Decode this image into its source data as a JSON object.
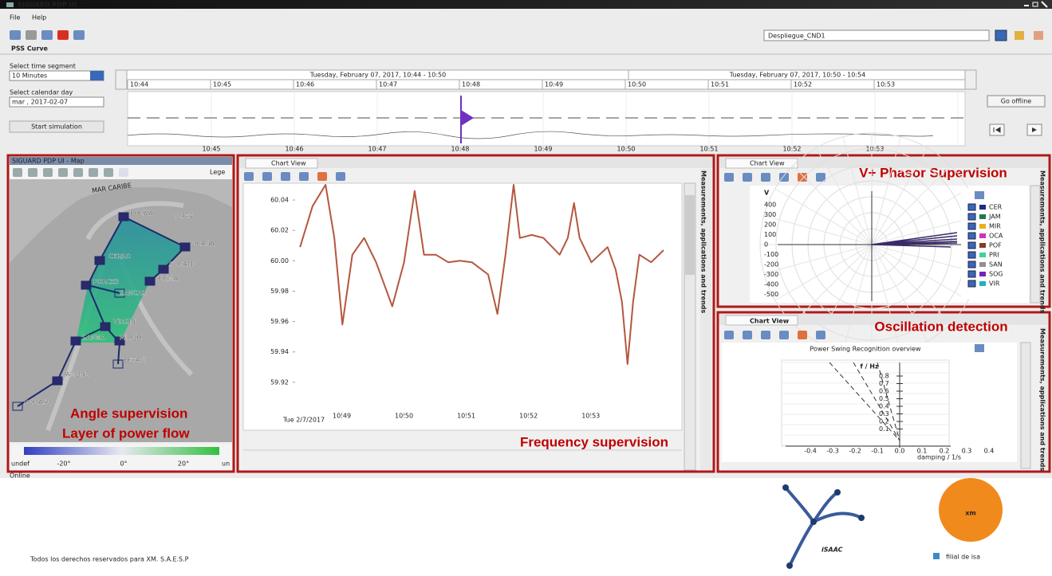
{
  "window": {
    "title": "SIGUARD PDP UI",
    "menu": [
      "File",
      "Help"
    ],
    "workspace": "Despliegue_CND1",
    "tab": "PSS Curve"
  },
  "controls": {
    "time_segment_label": "Select time segment",
    "time_segment": "10 Minutes",
    "calendar_label": "Select calendar day",
    "calendar_day": "mar , 2017-02-07",
    "start_button": "Start simulation",
    "offline_button": "Go offline"
  },
  "timeline": {
    "ranges": [
      "Tuesday, February 07, 2017, 10:44 - 10:50",
      "Tuesday, February 07, 2017, 10:50 - 10:54"
    ],
    "header_ticks": [
      "10:44",
      "10:45",
      "10:46",
      "10:47",
      "10:48",
      "10:49",
      "10:50",
      "10:51",
      "10:52",
      "10:53"
    ],
    "axis_ticks": [
      "10:45",
      "10:46",
      "10:47",
      "10:48",
      "10:49",
      "10:50",
      "10:51",
      "10:52",
      "10:53"
    ]
  },
  "map_panel": {
    "title": "SIGUARD PDP UI - Map",
    "legend_button": "Lege",
    "sea_label": "MAR CARIBE",
    "nodes": [
      "BOLIVA",
      "COPEY",
      "OCANA",
      "CERRO",
      "SOGAMO",
      "PRIMA",
      "PORCE3",
      "SANCAR",
      "VIRGIN",
      "SANMA",
      "MIROLI",
      "BETANI",
      "JAMOND",
      "POMASQ"
    ],
    "annotation": [
      "Angle supervision",
      "Layer of power flow"
    ],
    "scale_labels": [
      "undef",
      "-20°",
      "0°",
      "20°",
      "un"
    ]
  },
  "frequency_panel": {
    "tab": "Chart View",
    "side_label": "Measurements, applications and trends",
    "annotation": "Frequency supervision",
    "chart": {
      "type": "line",
      "color": "#b4573e",
      "x_date_label": "Tue 2/7/2017",
      "x": [
        48.33,
        48.53,
        48.74,
        48.88,
        49.01,
        49.17,
        49.36,
        49.55,
        49.81,
        50.0,
        50.17,
        50.32,
        50.51,
        50.71,
        50.9,
        51.09,
        51.35,
        51.5,
        51.63,
        51.76,
        51.86,
        52.05,
        52.24,
        52.5,
        52.63,
        52.73,
        52.82,
        53.01,
        53.27,
        53.4,
        53.5,
        53.59,
        53.68,
        53.78,
        53.97,
        54.17
      ],
      "values": [
        60.009,
        60.036,
        60.05,
        60.015,
        59.958,
        60.004,
        60.015,
        59.999,
        59.97,
        59.999,
        60.046,
        60.004,
        60.004,
        59.999,
        60.0,
        59.999,
        59.991,
        59.965,
        60.004,
        60.05,
        60.015,
        60.017,
        60.015,
        60.004,
        60.015,
        60.038,
        60.015,
        59.999,
        60.009,
        59.994,
        59.973,
        59.932,
        59.973,
        60.004,
        59.999,
        60.007
      ],
      "xlim": [
        48.25,
        54.4
      ],
      "ylim": [
        59.9,
        60.05
      ],
      "xticks": [
        {
          "value": 49,
          "label": "10:49"
        },
        {
          "value": 50,
          "label": "10:50"
        },
        {
          "value": 51,
          "label": "10:51"
        },
        {
          "value": 52,
          "label": "10:52"
        },
        {
          "value": 53,
          "label": "10:53"
        }
      ],
      "yticks": [
        60.04,
        60.02,
        {
          "value": 60,
          "label": "60.00"
        },
        59.98,
        59.96,
        59.94,
        59.92
      ]
    }
  },
  "phasor_panel": {
    "tab": "Chart View",
    "annotation": "V+ Phasor Supervision",
    "axis_label": "V",
    "ticks": [
      400,
      300,
      200,
      100,
      0,
      -100,
      -200,
      -300,
      -400,
      -500
    ],
    "legend": [
      "CER",
      "JAM",
      "MIR",
      "OCA",
      "POF",
      "PRI",
      "SAN",
      "SOG",
      "VIR"
    ],
    "legend_colors": [
      "#1f2a8a",
      "#1e7a4e",
      "#e8b020",
      "#d030c0",
      "#8a3a20",
      "#40d0a0",
      "#909090",
      "#7a20c0",
      "#20b0c0"
    ]
  },
  "oscillation_panel": {
    "tab": "Chart View",
    "annotation": "Oscillation detection",
    "chart_title": "Power Swing Recognition overview",
    "y_label": "f / Hz",
    "x_label": "damping / 1/s",
    "yticks": [
      "0.8",
      "0.7",
      "0.6",
      "0.5",
      "0.4",
      "0.3",
      "0.2",
      "0.1"
    ],
    "xticks": [
      "-0.4",
      "-0.3",
      "-0.2",
      "-0.1",
      "0.0",
      "0.1",
      "0.2",
      "0.3",
      "0.4"
    ]
  },
  "footer": {
    "status": "Online",
    "copyright": "Todos los derechos reservados para XM. S.A.E.S.P",
    "logo_isaac": "iSAAC",
    "logo_xm": "xm",
    "logo_tagline": "filial de isa"
  }
}
